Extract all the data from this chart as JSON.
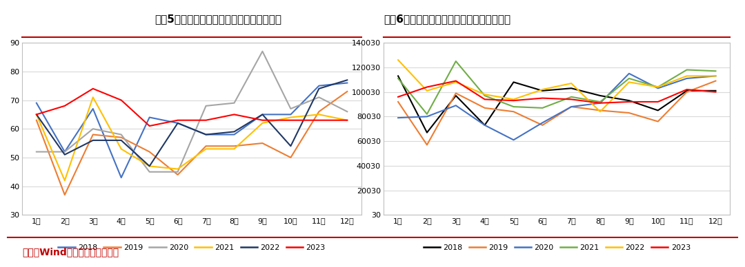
{
  "title1": "图表5：中国天然橡胶进口量（单位：万吨）",
  "title2": "图表6：中国天然橡胶进口额（单位：万吨）",
  "source": "来源：Wind，广金期货研究中心",
  "months": [
    "1月",
    "2月",
    "3月",
    "4月",
    "5月",
    "6月",
    "7月",
    "8月",
    "9月",
    "10月",
    "11月",
    "12月"
  ],
  "chart1": {
    "series": {
      "2018": [
        69,
        52,
        67,
        43,
        64,
        62,
        58,
        58,
        65,
        65,
        75,
        76
      ],
      "2019": [
        63,
        37,
        58,
        57,
        52,
        44,
        54,
        54,
        55,
        50,
        66,
        73
      ],
      "2020": [
        52,
        52,
        60,
        58,
        45,
        45,
        68,
        69,
        87,
        67,
        71,
        66
      ],
      "2021": [
        65,
        42,
        71,
        53,
        47,
        46,
        53,
        53,
        62,
        64,
        65,
        63
      ],
      "2022": [
        65,
        51,
        56,
        56,
        47,
        62,
        58,
        59,
        65,
        54,
        74,
        77
      ],
      "2023": [
        65,
        68,
        74,
        70,
        61,
        63,
        63,
        65,
        63,
        63,
        63,
        63
      ]
    },
    "colors": {
      "2018": "#4472C4",
      "2019": "#ED7D31",
      "2020": "#A5A5A5",
      "2021": "#FFC000",
      "2022": "#203864",
      "2023": "#FF0000"
    },
    "ylim": [
      30,
      90
    ],
    "yticks": [
      30,
      40,
      50,
      60,
      70,
      80,
      90
    ]
  },
  "chart2": {
    "series": {
      "2018": [
        113000,
        67000,
        97000,
        73000,
        108000,
        101000,
        103000,
        97000,
        93000,
        85000,
        101000,
        101000
      ],
      "2019": [
        92000,
        57000,
        99000,
        87000,
        84000,
        73000,
        88000,
        85000,
        83000,
        76000,
        100000,
        109000
      ],
      "2020": [
        79000,
        80000,
        89000,
        73000,
        61000,
        75000,
        88000,
        91000,
        115000,
        103000,
        111000,
        113000
      ],
      "2021": [
        111000,
        82000,
        125000,
        97000,
        88000,
        87000,
        96000,
        92000,
        111000,
        104000,
        118000,
        117000
      ],
      "2022": [
        126000,
        101000,
        108000,
        98000,
        94000,
        102000,
        107000,
        84000,
        108000,
        104000,
        113000,
        113000
      ],
      "2023": [
        96000,
        104000,
        109000,
        94000,
        93000,
        95000,
        94000,
        91000,
        92000,
        92000,
        102000,
        100000
      ]
    },
    "colors": {
      "2018": "#000000",
      "2019": "#ED7D31",
      "2020": "#4472C4",
      "2021": "#70AD47",
      "2022": "#FFC000",
      "2023": "#FF0000"
    },
    "ylim": [
      30,
      140030
    ],
    "yticks": [
      30,
      20030,
      40030,
      60030,
      80030,
      100030,
      120030,
      140030
    ]
  },
  "bg_color": "#FFFFFF",
  "plot_bg_color": "#FFFFFF",
  "grid_color": "#D9D9D9",
  "title_color": "#000000",
  "source_color": "#C00000",
  "title_line_color": "#C00000",
  "border_color": "#BFBFBF"
}
